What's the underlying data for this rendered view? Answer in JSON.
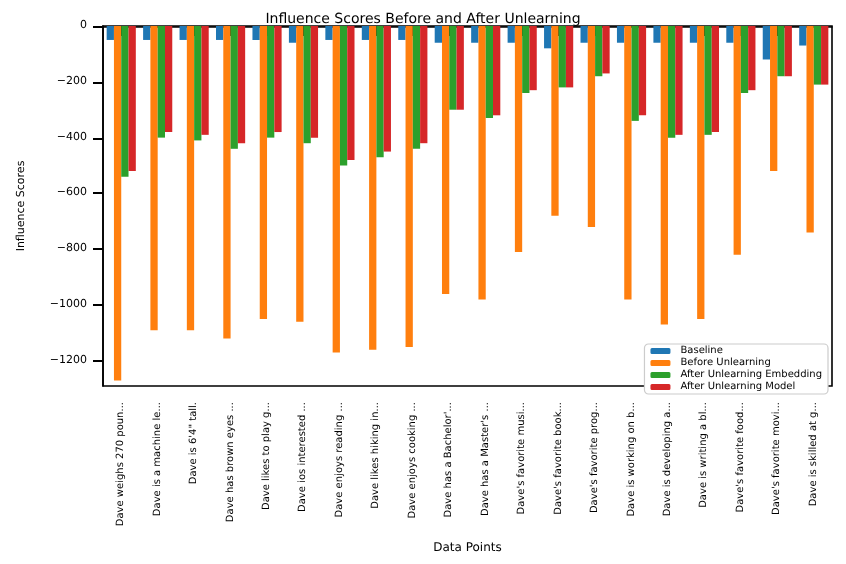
{
  "chart_data": {
    "type": "bar",
    "title": "Influence Scores Before and After Unlearning",
    "xlabel": "Data Points",
    "ylabel": "Influence Scores",
    "categories": [
      "Dave weighs 270 poun...",
      "Dave is a machine le...",
      "Dave is 6'4\" tall.",
      "Dave has brown eyes ...",
      "Dave likes to play g...",
      "Dave ios interested ...",
      "Dave enjoys reading ...",
      "Dave likes hiking in...",
      "Dave enjoys cooking ...",
      "Dave has a Bachelor'...",
      "Dave has a Master's ...",
      "Dave's favorite musi...",
      "Dave's favorite book...",
      "Dave's favorite prog...",
      "Dave is working on b...",
      "Dave is developing a...",
      "Dave is writing a bl...",
      "Dave's favorite food...",
      "Dave's favorite movi...",
      "Dave is skilled at g..."
    ],
    "series": [
      {
        "name": "Baseline",
        "color": "#1f77b4",
        "values": [
          -50,
          -50,
          -50,
          -50,
          -50,
          -60,
          -50,
          -50,
          -50,
          -60,
          -60,
          -60,
          -80,
          -60,
          -60,
          -60,
          -60,
          -60,
          -120,
          -70
        ]
      },
      {
        "name": "Before Unlearning",
        "color": "#ff7f0e",
        "values": [
          -1270,
          -1090,
          -1090,
          -1120,
          -1050,
          -1060,
          -1170,
          -1160,
          -1150,
          -960,
          -980,
          -810,
          -680,
          -720,
          -980,
          -1070,
          -1050,
          -820,
          -520,
          -740
        ]
      },
      {
        "name": "After Unlearning Embedding",
        "color": "#2ca02c",
        "values": [
          -540,
          -400,
          -410,
          -440,
          -400,
          -420,
          -500,
          -470,
          -440,
          -300,
          -330,
          -240,
          -220,
          -180,
          -340,
          -400,
          -390,
          -240,
          -180,
          -210
        ]
      },
      {
        "name": "After Unlearning Model",
        "color": "#d62728",
        "values": [
          -520,
          -380,
          -390,
          -420,
          -380,
          -400,
          -480,
          -450,
          -420,
          -300,
          -320,
          -230,
          -220,
          -170,
          -320,
          -390,
          -380,
          -230,
          -180,
          -210
        ]
      }
    ],
    "ylim": [
      -1290,
      0
    ],
    "yticks": [
      -1200,
      -1000,
      -800,
      -600,
      -400,
      -200,
      0
    ],
    "grid": false,
    "legend": "bottom right"
  }
}
